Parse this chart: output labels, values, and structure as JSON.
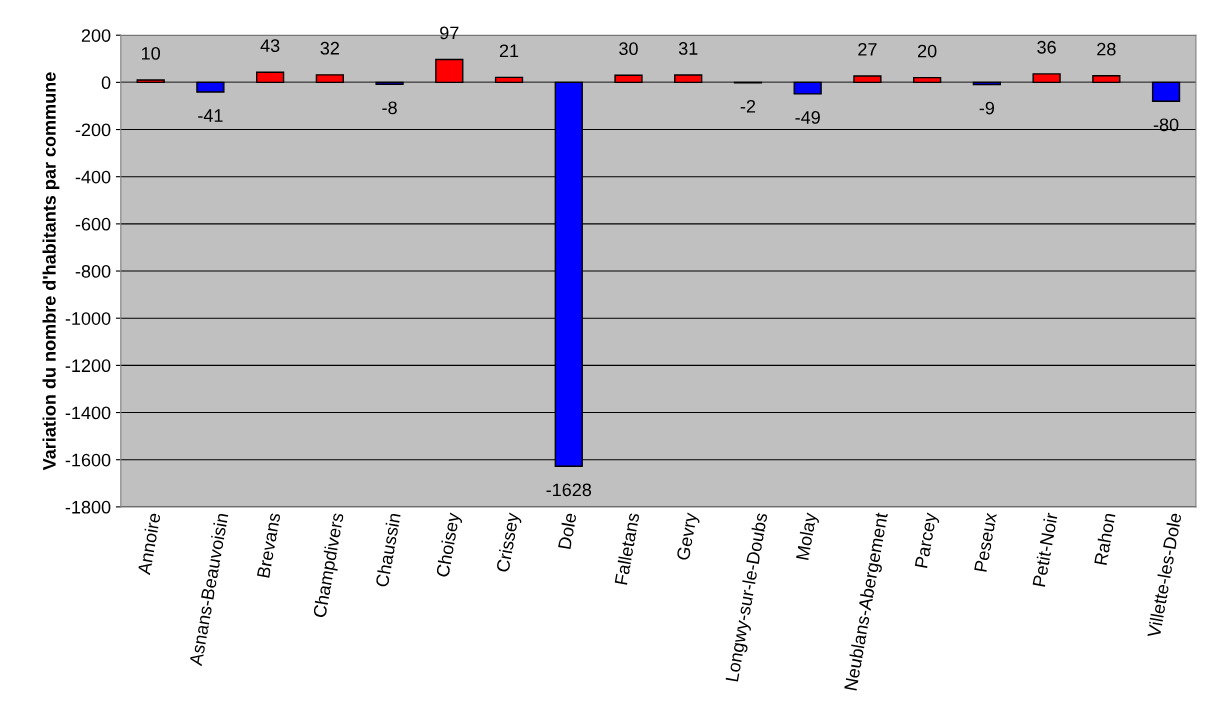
{
  "chart_data": {
    "type": "bar",
    "ylabel": "Variation du nombre d'habitants par commune",
    "categories": [
      "Annoire",
      "Asnans-Beauvoisin",
      "Brevans",
      "Champdivers",
      "Chaussin",
      "Choisey",
      "Crissey",
      "Dole",
      "Falletans",
      "Gevry",
      "Longwy-sur-le-Doubs",
      "Molay",
      "Neublans-Abergement",
      "Parcey",
      "Peseux",
      "Petit-Noir",
      "Rahon",
      "Villette-les-Dole"
    ],
    "values": [
      10,
      -41,
      43,
      32,
      -8,
      97,
      21,
      -1628,
      30,
      31,
      -2,
      -49,
      27,
      20,
      -9,
      36,
      28,
      -80
    ],
    "colors": [
      "#ff0000",
      "#0000ff",
      "#ff0000",
      "#ff0000",
      "#0000ff",
      "#ff0000",
      "#ff0000",
      "#0000ff",
      "#ff0000",
      "#ff0000",
      "#0000ff",
      "#0000ff",
      "#ff0000",
      "#ff0000",
      "#0000ff",
      "#ff0000",
      "#ff0000",
      "#0000ff"
    ],
    "ylim": [
      -1800,
      200
    ],
    "yticks": [
      -1800,
      -1600,
      -1400,
      -1200,
      -1000,
      -800,
      -600,
      -400,
      -200,
      0,
      200
    ],
    "grid": "y",
    "data_labels": true,
    "legend": false
  }
}
